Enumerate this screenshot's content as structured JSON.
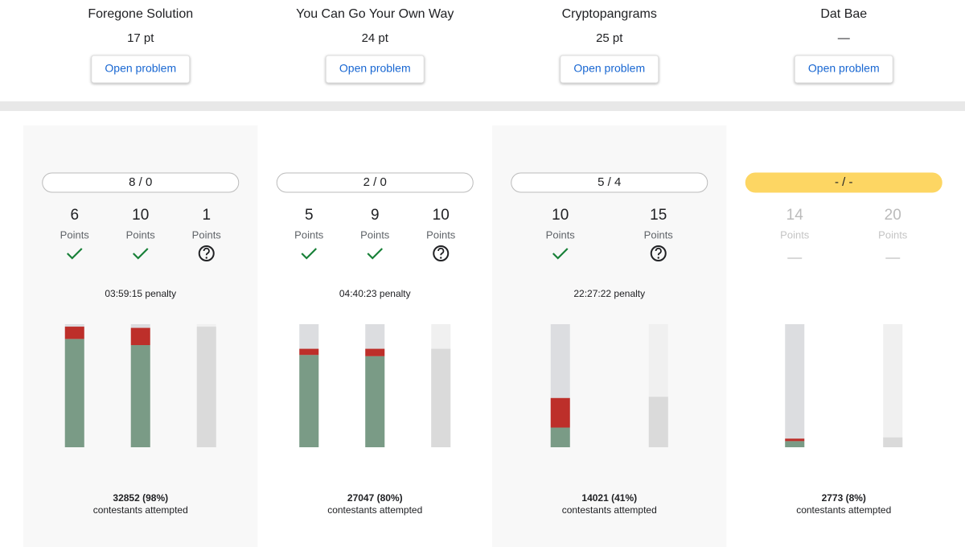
{
  "points_label": "Points",
  "button_label": "Open problem",
  "attempted_label": "contestants attempted",
  "problems": [
    {
      "name": "Foregone Solution",
      "score": "17 pt",
      "summary": "8 / 0",
      "penalty": "03:59:15 penalty",
      "attempted": "32852 (98%)",
      "subtasks": [
        {
          "points": 6,
          "status": "solved",
          "correct": 88,
          "incorrect": 10
        },
        {
          "points": 10,
          "status": "solved",
          "correct": 83,
          "incorrect": 14
        },
        {
          "points": 1,
          "status": "unknown",
          "attempted": 98
        }
      ]
    },
    {
      "name": "You Can Go Your Own Way",
      "score": "24 pt",
      "summary": "2 / 0",
      "penalty": "04:40:23 penalty",
      "attempted": "27047 (80%)",
      "subtasks": [
        {
          "points": 5,
          "status": "solved",
          "correct": 75,
          "incorrect": 5
        },
        {
          "points": 9,
          "status": "solved",
          "correct": 74,
          "incorrect": 6
        },
        {
          "points": 10,
          "status": "unknown",
          "attempted": 80
        }
      ]
    },
    {
      "name": "Cryptopangrams",
      "score": "25 pt",
      "summary": "5 / 4",
      "penalty": "22:27:22 penalty",
      "attempted": "14021 (41%)",
      "subtasks": [
        {
          "points": 10,
          "status": "solved",
          "correct": 16,
          "incorrect": 24
        },
        {
          "points": 15,
          "status": "unknown",
          "attempted": 41
        }
      ]
    },
    {
      "name": "Dat Bae",
      "score": "—",
      "summary": "- / -",
      "attempted": "2773 (8%)",
      "highlight": true,
      "subtasks": [
        {
          "points": 14,
          "status": "none",
          "correct": 5,
          "incorrect": 2
        },
        {
          "points": 20,
          "status": "none",
          "attempted": 8
        }
      ]
    }
  ]
}
